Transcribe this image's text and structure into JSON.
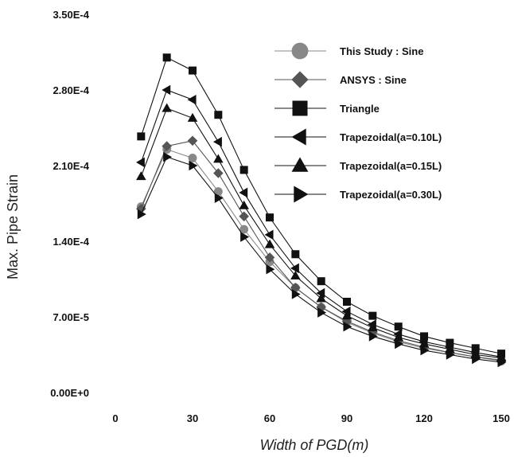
{
  "chart_data": {
    "type": "line",
    "xlabel": "Width of PGD(m)",
    "ylabel": "Max. Pipe Strain",
    "xlim": [
      0,
      150
    ],
    "ylim": [
      0,
      0.00035
    ],
    "x_ticks": [
      "0",
      "30",
      "60",
      "90",
      "120",
      "150"
    ],
    "y_ticks": [
      "0.00E+0",
      "7.00E-5",
      "1.40E-4",
      "2.10E-4",
      "2.80E-4",
      "3.50E-4"
    ],
    "legend_position": "top-right",
    "x": [
      10,
      20,
      30,
      40,
      50,
      60,
      70,
      80,
      90,
      100,
      110,
      120,
      130,
      140,
      150
    ],
    "series": [
      {
        "name": "This Study : Sine",
        "marker": "circle",
        "color": "#888888",
        "values": [
          0.000172,
          0.000225,
          0.000217,
          0.000186,
          0.000151,
          0.000121,
          9.7e-05,
          7.9e-05,
          6.5e-05,
          5.5e-05,
          4.7e-05,
          4.1e-05,
          3.7e-05,
          3.3e-05,
          2.9e-05
        ]
      },
      {
        "name": "ANSYS : Sine",
        "marker": "diamond",
        "color": "#555555",
        "values": [
          0.00017,
          0.000228,
          0.000233,
          0.000203,
          0.000163,
          0.000125,
          9.7e-05,
          7.9e-05,
          6.6e-05,
          5.6e-05,
          4.8e-05,
          4.2e-05,
          3.7e-05,
          3.3e-05,
          3e-05
        ]
      },
      {
        "name": "Triangle",
        "marker": "square",
        "color": "#111111",
        "values": [
          0.000237,
          0.00031,
          0.000298,
          0.000257,
          0.000206,
          0.000162,
          0.000128,
          0.000103,
          8.4e-05,
          7.1e-05,
          6.1e-05,
          5.2e-05,
          4.6e-05,
          4.1e-05,
          3.6e-05
        ]
      },
      {
        "name": "Trapezoidal(a=0.10L)",
        "marker": "tri-left",
        "color": "#111111",
        "values": [
          0.000213,
          0.00028,
          0.000271,
          0.000232,
          0.000185,
          0.000146,
          0.000115,
          9.2e-05,
          7.5e-05,
          6.3e-05,
          5.4e-05,
          4.7e-05,
          4.2e-05,
          3.7e-05,
          3.3e-05
        ]
      },
      {
        "name": "Trapezoidal(a=0.15L)",
        "marker": "tri-up",
        "color": "#111111",
        "values": [
          0.0002,
          0.000263,
          0.000254,
          0.000216,
          0.000173,
          0.000137,
          0.000108,
          8.7e-05,
          7.1e-05,
          6e-05,
          5.1e-05,
          4.5e-05,
          4e-05,
          3.5e-05,
          3.2e-05
        ]
      },
      {
        "name": "Trapezoidal(a=0.30L)",
        "marker": "tri-right",
        "color": "#111111",
        "values": [
          0.000165,
          0.000218,
          0.00021,
          0.00018,
          0.000144,
          0.000114,
          9.1e-05,
          7.4e-05,
          6.1e-05,
          5.2e-05,
          4.5e-05,
          3.9e-05,
          3.5e-05,
          3.1e-05,
          2.8e-05
        ]
      }
    ]
  }
}
